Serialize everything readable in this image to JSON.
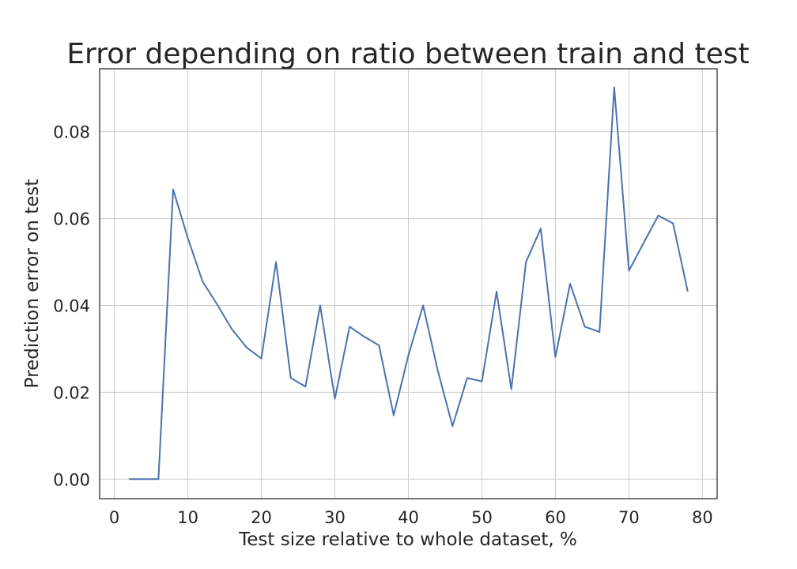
{
  "chart_data": {
    "type": "line",
    "title": "Error depending on ratio between train and test",
    "xlabel": "Test size relative to whole dataset, %",
    "ylabel": "Prediction error on test",
    "xlim": [
      -2,
      82
    ],
    "ylim": [
      -0.0045,
      0.0945
    ],
    "xticks": [
      0,
      10,
      20,
      30,
      40,
      50,
      60,
      70,
      80
    ],
    "xtick_labels": [
      "0",
      "10",
      "20",
      "30",
      "40",
      "50",
      "60",
      "70",
      "80"
    ],
    "yticks": [
      0.0,
      0.02,
      0.04,
      0.06,
      0.08
    ],
    "ytick_labels": [
      "0.00",
      "0.02",
      "0.04",
      "0.06",
      "0.08"
    ],
    "grid": true,
    "series": [
      {
        "color": "#4c72b0",
        "x": [
          2,
          4,
          6,
          8,
          10,
          12,
          14,
          16,
          18,
          20,
          22,
          24,
          26,
          28,
          30,
          32,
          34,
          36,
          38,
          40,
          42,
          44,
          46,
          48,
          50,
          52,
          54,
          56,
          58,
          60,
          62,
          64,
          66,
          68,
          70,
          72,
          74,
          76,
          78
        ],
        "y": [
          0.0,
          0.0,
          0.0,
          0.0667,
          0.0555,
          0.0455,
          0.0402,
          0.0345,
          0.0303,
          0.0278,
          0.05,
          0.0233,
          0.0213,
          0.04,
          0.0185,
          0.0351,
          0.0328,
          0.0308,
          0.0147,
          0.0285,
          0.04,
          0.025,
          0.0122,
          0.0233,
          0.0225,
          0.0432,
          0.0207,
          0.05,
          0.0577,
          0.0281,
          0.045,
          0.0351,
          0.0339,
          0.0902,
          0.048,
          0.0544,
          0.0607,
          0.0589,
          0.0432
        ]
      }
    ]
  }
}
